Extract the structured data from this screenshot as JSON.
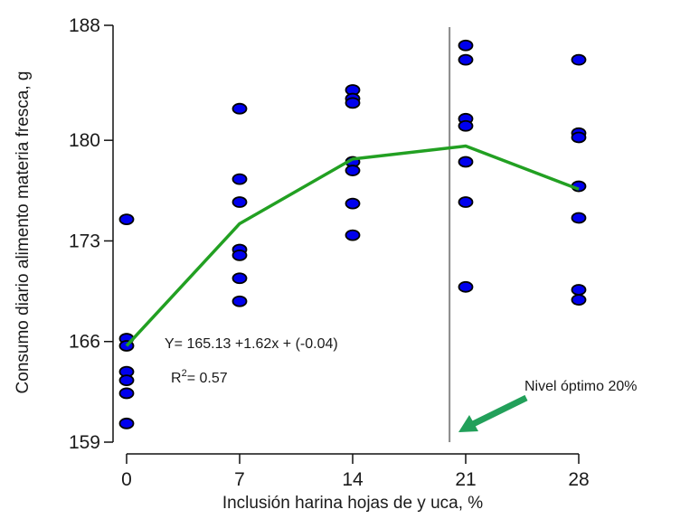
{
  "chart_data": {
    "type": "scatter",
    "xlabel": "Inclusión harina hojas de y uca, %",
    "ylabel": "Consumo diario alimento materia fresca, g",
    "xlim": [
      0,
      28
    ],
    "ylim": [
      159,
      188
    ],
    "x_ticks": [
      0,
      7,
      14,
      21,
      28
    ],
    "y_ticks": [
      159,
      166,
      173,
      180,
      188
    ],
    "grid": false,
    "series": [
      {
        "kind": "points",
        "color": "#0000ee",
        "points": [
          [
            0,
            174.5
          ],
          [
            0,
            166.2
          ],
          [
            0,
            165.7
          ],
          [
            0,
            163.9
          ],
          [
            0,
            163.3
          ],
          [
            0,
            162.4
          ],
          [
            0,
            160.3
          ],
          [
            7,
            182.2
          ],
          [
            7,
            177.3
          ],
          [
            7,
            175.7
          ],
          [
            7,
            172.4
          ],
          [
            7,
            172.0
          ],
          [
            7,
            170.4
          ],
          [
            7,
            168.8
          ],
          [
            14,
            183.5
          ],
          [
            14,
            182.9
          ],
          [
            14,
            182.6
          ],
          [
            14,
            178.5
          ],
          [
            14,
            177.9
          ],
          [
            14,
            175.6
          ],
          [
            14,
            173.4
          ],
          [
            21,
            186.6
          ],
          [
            21,
            185.6
          ],
          [
            21,
            181.5
          ],
          [
            21,
            181.0
          ],
          [
            21,
            178.5
          ],
          [
            21,
            175.7
          ],
          [
            21,
            169.8
          ],
          [
            28,
            185.6
          ],
          [
            28,
            180.5
          ],
          [
            28,
            180.2
          ],
          [
            28,
            176.8
          ],
          [
            28,
            174.6
          ],
          [
            28,
            169.6
          ],
          [
            28,
            168.9
          ]
        ]
      },
      {
        "kind": "line",
        "color": "#22a022",
        "points": [
          [
            0,
            165.7
          ],
          [
            7,
            174.2
          ],
          [
            14,
            178.7
          ],
          [
            21,
            179.6
          ],
          [
            28,
            176.6
          ]
        ]
      }
    ],
    "reference_line": {
      "x": 20,
      "color": "#888888"
    },
    "annotations": {
      "equation": "Y= 165.13 +1.62x + (-0.04)",
      "r2_prefix": "R",
      "r2_sup": "2",
      "r2_suffix": "= 0.57",
      "optimum_label": "Nivel óptimo 20%",
      "arrow_color": "#22a05a"
    }
  }
}
